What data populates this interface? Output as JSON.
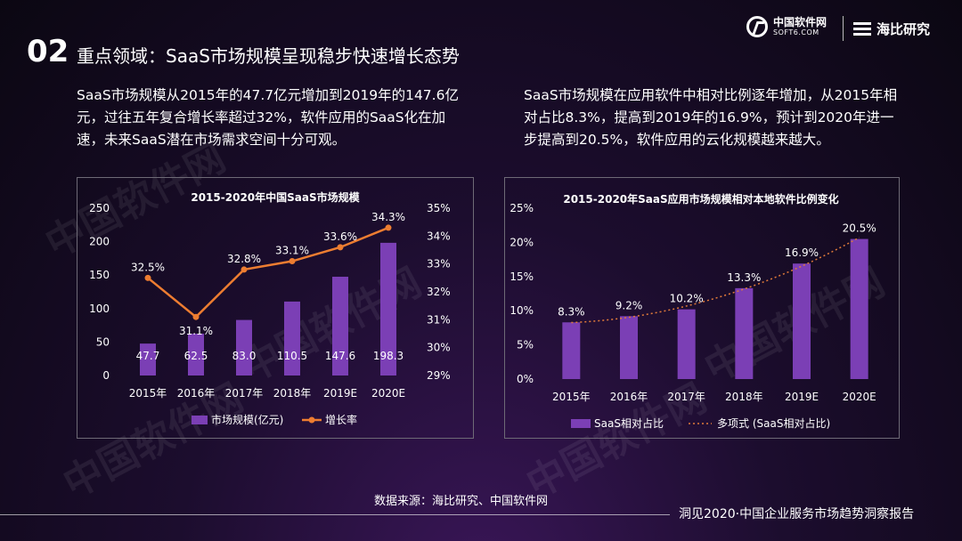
{
  "slide": {
    "number": "02",
    "title": "重点领域：SaaS市场规模呈现稳步快速增长态势"
  },
  "logos": {
    "left_name": "中国软件网",
    "left_domain": "SOFT6.COM",
    "right_name": "海比研究"
  },
  "paragraphs": {
    "left": "SaaS市场规模从2015年的47.7亿元增加到2019年的147.6亿元，过往五年复合增长率超过32%，软件应用的SaaS化在加速，未来SaaS潜在市场需求空间十分可观。",
    "right": "SaaS市场规模在应用软件中相对比例逐年增加，从2015年相对占比8.3%，提高到2019年的16.9%，预计到2020年进一步提高到20.5%，软件应用的云化规模越来越大。"
  },
  "watermark_text": "中国软件网",
  "source": "数据来源：海比研究、中国软件网",
  "footer": "洞见2020·中国企业服务市场趋势洞察报告",
  "colors": {
    "bar": "#7b3fb5",
    "line": "#ed7d31",
    "trend": "#e07a3a",
    "panel_border": "#6e6a76",
    "axis_text": "#ffffff"
  },
  "chart_data": [
    {
      "type": "bar",
      "title": "2015-2020年中国SaaS市场规模",
      "categories": [
        "2015年",
        "2016年",
        "2017年",
        "2018年",
        "2019E",
        "2020E"
      ],
      "series": [
        {
          "name": "市场规模(亿元)",
          "type": "bar",
          "axis": "left",
          "values": [
            47.7,
            62.5,
            83.0,
            110.5,
            147.6,
            198.3
          ],
          "labels": [
            "47.7",
            "62.5",
            "83.0",
            "110.5",
            "147.6",
            "198.3"
          ]
        },
        {
          "name": "增长率",
          "type": "line",
          "axis": "right",
          "values": [
            32.5,
            31.1,
            32.8,
            33.1,
            33.6,
            34.3
          ],
          "labels": [
            "32.5%",
            "31.1%",
            "32.8%",
            "33.1%",
            "33.6%",
            "34.3%"
          ]
        }
      ],
      "y_left": {
        "lim": [
          0,
          250
        ],
        "ticks": [
          "0",
          "50",
          "100",
          "150",
          "200",
          "250"
        ]
      },
      "y_right": {
        "lim": [
          29,
          35
        ],
        "ticks": [
          "29%",
          "30%",
          "31%",
          "32%",
          "33%",
          "34%",
          "35%"
        ]
      },
      "legend_position": "bottom",
      "grid": false
    },
    {
      "type": "bar",
      "title": "2015-2020年SaaS应用市场规模相对本地软件比例变化",
      "categories": [
        "2015年",
        "2016年",
        "2017年",
        "2018年",
        "2019E",
        "2020E"
      ],
      "series": [
        {
          "name": "SaaS相对占比",
          "type": "bar",
          "values": [
            8.3,
            9.2,
            10.2,
            13.3,
            16.9,
            20.5
          ],
          "labels": [
            "8.3%",
            "9.2%",
            "10.2%",
            "13.3%",
            "16.9%",
            "20.5%"
          ]
        },
        {
          "name": "多项式 (SaaS相对占比)",
          "type": "trendline"
        }
      ],
      "y": {
        "lim": [
          0,
          25
        ],
        "ticks": [
          "0%",
          "5%",
          "10%",
          "15%",
          "20%",
          "25%"
        ]
      },
      "legend_position": "bottom",
      "grid": false
    }
  ]
}
